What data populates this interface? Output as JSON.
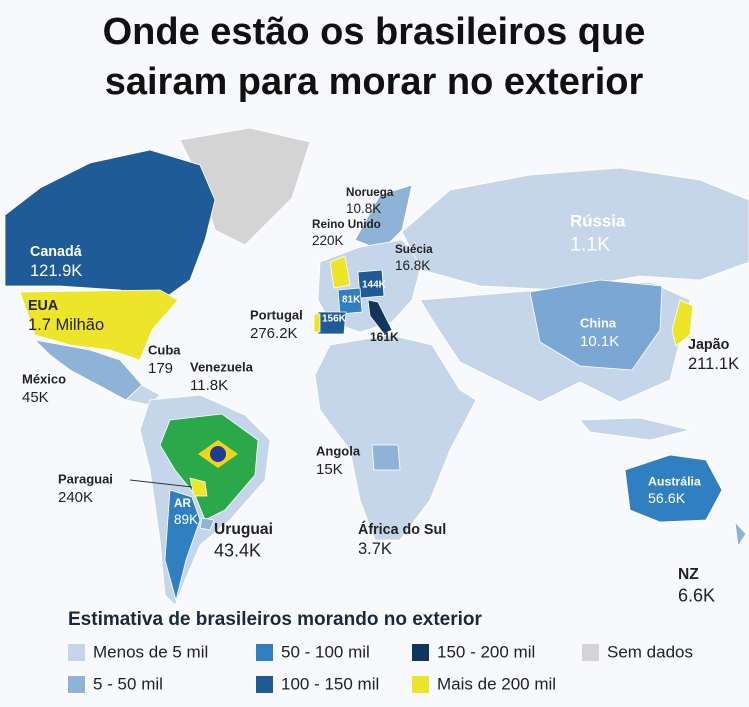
{
  "title_lines": [
    "Onde estão os brasileiros que",
    "sairam para morar no exterior"
  ],
  "labels": [
    {
      "name": "Canadá",
      "value": "121.9K"
    },
    {
      "name": "EUA",
      "value": "1.7 Milhão"
    },
    {
      "name": "Cuba",
      "value": "179"
    },
    {
      "name": "Venezuela",
      "value": "11.8K"
    },
    {
      "name": "México",
      "value": "45K"
    },
    {
      "name": "Paraguai",
      "value": "240K"
    },
    {
      "name": "AR",
      "value": "89K"
    },
    {
      "name": "Uruguai",
      "value": "43.4K"
    },
    {
      "name": "Portugal",
      "value": "276.2K"
    },
    {
      "name": "Reino Unido",
      "value": "220K"
    },
    {
      "name": "Noruega",
      "value": "10.8K"
    },
    {
      "name": "Suécia",
      "value": "16.8K"
    },
    {
      "name": "Rússia",
      "value": "1.1K"
    },
    {
      "name": "China",
      "value": "10.1K"
    },
    {
      "name": "Japão",
      "value": "211.1K"
    },
    {
      "name": "Angola",
      "value": "15K"
    },
    {
      "name": "África do Sul",
      "value": "3.7K"
    },
    {
      "name": "Austrália",
      "value": "56.6K"
    },
    {
      "name": "NZ",
      "value": "6.6K"
    }
  ],
  "small_labels": [
    "144K",
    "81K",
    "156K",
    "161K"
  ],
  "legend": {
    "title": "Estimativa de brasileiros morando no exterior",
    "items": [
      {
        "label": "Menos de 5 mil",
        "color": "#c5d6ea"
      },
      {
        "label": "5 - 50 mil",
        "color": "#8fb3d6"
      },
      {
        "label": "50 - 100 mil",
        "color": "#2f7fc1"
      },
      {
        "label": "100 - 150 mil",
        "color": "#1f5b96"
      },
      {
        "label": "150 - 200 mil",
        "color": "#12355e"
      },
      {
        "label": "Mais de 200 mil",
        "color": "#ece52a"
      },
      {
        "label": "Sem dados",
        "color": "#d4d4d4"
      }
    ]
  }
}
